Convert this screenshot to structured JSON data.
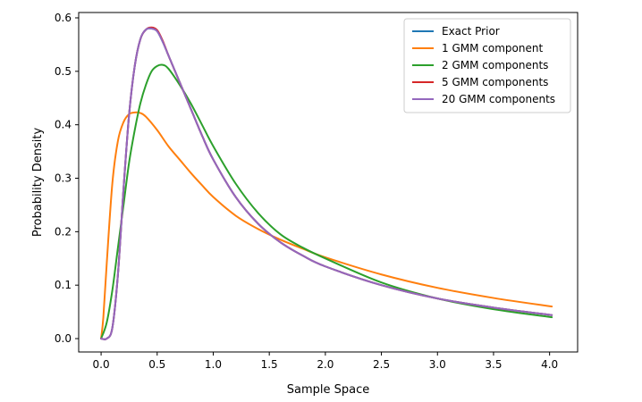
{
  "chart_data": {
    "type": "line",
    "title": "",
    "xlabel": "Sample Space",
    "ylabel": "Probability Density",
    "xlim": [
      -0.2,
      4.25
    ],
    "ylim": [
      -0.025,
      0.61
    ],
    "xticks": [
      "0.0",
      "0.5",
      "1.0",
      "1.5",
      "2.0",
      "2.5",
      "3.0",
      "3.5",
      "4.0"
    ],
    "yticks": [
      "0.0",
      "0.1",
      "0.2",
      "0.3",
      "0.4",
      "0.5",
      "0.6"
    ],
    "grid": false,
    "legend_position": "top-right",
    "series": [
      {
        "name": "Exact Prior",
        "color": "#1f77b4",
        "x": [
          0.0,
          0.05,
          0.1,
          0.15,
          0.2,
          0.25,
          0.3,
          0.35,
          0.4,
          0.45,
          0.5,
          0.55,
          0.6,
          0.7,
          0.8,
          0.9,
          1.0,
          1.2,
          1.4,
          1.6,
          1.8,
          2.0,
          2.5,
          3.0,
          3.5,
          4.02
        ],
        "y": [
          0.0,
          0.0,
          0.02,
          0.12,
          0.28,
          0.42,
          0.51,
          0.56,
          0.578,
          0.58,
          0.575,
          0.555,
          0.53,
          0.48,
          0.43,
          0.38,
          0.335,
          0.265,
          0.215,
          0.18,
          0.155,
          0.135,
          0.1,
          0.075,
          0.058,
          0.044
        ]
      },
      {
        "name": "1 GMM component",
        "color": "#ff7f0e",
        "x": [
          0.0,
          0.02,
          0.05,
          0.1,
          0.15,
          0.2,
          0.25,
          0.3,
          0.35,
          0.4,
          0.5,
          0.6,
          0.7,
          0.8,
          0.9,
          1.0,
          1.2,
          1.4,
          1.6,
          1.8,
          2.0,
          2.5,
          3.0,
          3.5,
          4.02
        ],
        "y": [
          0.0,
          0.04,
          0.14,
          0.29,
          0.37,
          0.405,
          0.42,
          0.423,
          0.422,
          0.415,
          0.39,
          0.36,
          0.335,
          0.31,
          0.287,
          0.265,
          0.23,
          0.205,
          0.185,
          0.168,
          0.152,
          0.12,
          0.095,
          0.076,
          0.06
        ]
      },
      {
        "name": "2 GMM components",
        "color": "#2ca02c",
        "x": [
          0.0,
          0.05,
          0.1,
          0.15,
          0.2,
          0.25,
          0.3,
          0.35,
          0.4,
          0.45,
          0.5,
          0.55,
          0.6,
          0.7,
          0.8,
          0.9,
          1.0,
          1.2,
          1.4,
          1.6,
          1.8,
          2.0,
          2.5,
          3.0,
          3.5,
          4.02
        ],
        "y": [
          0.0,
          0.03,
          0.09,
          0.17,
          0.25,
          0.33,
          0.39,
          0.44,
          0.475,
          0.5,
          0.51,
          0.512,
          0.505,
          0.475,
          0.44,
          0.4,
          0.36,
          0.29,
          0.235,
          0.195,
          0.17,
          0.15,
          0.105,
          0.075,
          0.055,
          0.04
        ]
      },
      {
        "name": "5 GMM components",
        "color": "#d62728",
        "x": [
          0.0,
          0.05,
          0.1,
          0.15,
          0.2,
          0.25,
          0.3,
          0.35,
          0.4,
          0.45,
          0.5,
          0.55,
          0.6,
          0.7,
          0.8,
          0.9,
          1.0,
          1.2,
          1.4,
          1.6,
          1.8,
          2.0,
          2.5,
          3.0,
          3.5,
          4.02
        ],
        "y": [
          0.0,
          0.0,
          0.02,
          0.12,
          0.28,
          0.42,
          0.51,
          0.56,
          0.578,
          0.582,
          0.577,
          0.557,
          0.53,
          0.48,
          0.43,
          0.38,
          0.335,
          0.265,
          0.215,
          0.18,
          0.155,
          0.135,
          0.1,
          0.075,
          0.058,
          0.044
        ]
      },
      {
        "name": "20 GMM components",
        "color": "#9467bd",
        "x": [
          0.0,
          0.05,
          0.1,
          0.15,
          0.2,
          0.25,
          0.3,
          0.35,
          0.4,
          0.45,
          0.5,
          0.55,
          0.6,
          0.7,
          0.8,
          0.9,
          1.0,
          1.2,
          1.4,
          1.6,
          1.8,
          2.0,
          2.5,
          3.0,
          3.5,
          4.02
        ],
        "y": [
          0.0,
          0.0,
          0.02,
          0.12,
          0.28,
          0.42,
          0.51,
          0.56,
          0.578,
          0.58,
          0.575,
          0.555,
          0.53,
          0.48,
          0.43,
          0.38,
          0.335,
          0.265,
          0.215,
          0.18,
          0.155,
          0.135,
          0.1,
          0.075,
          0.058,
          0.044
        ]
      }
    ]
  }
}
